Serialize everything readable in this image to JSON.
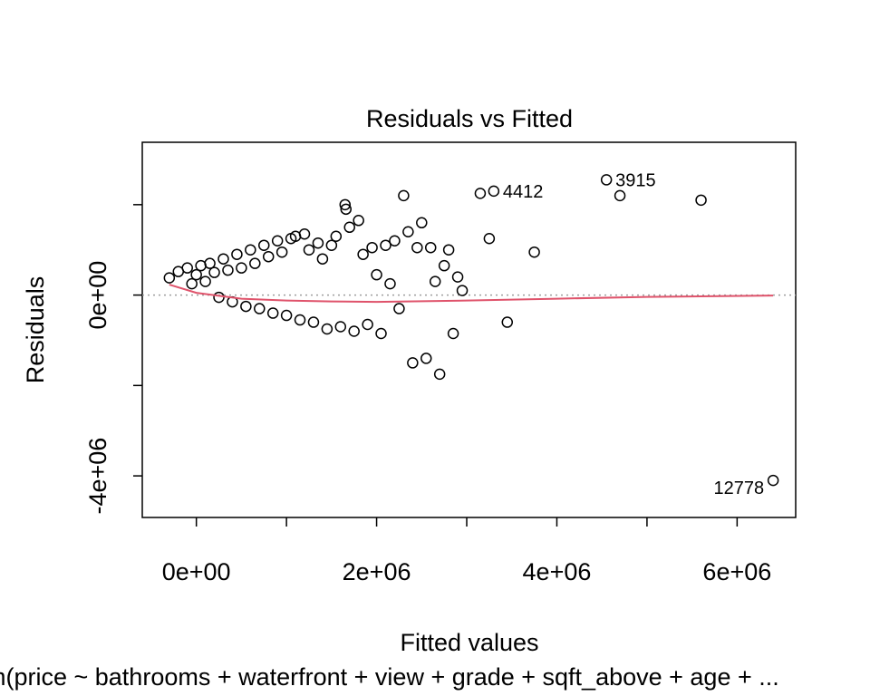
{
  "chart_data": {
    "type": "scatter",
    "title": "Residuals vs Fitted",
    "xlabel": "Fitted values",
    "ylabel": "Residuals",
    "subtitle": "lm(price ~ bathrooms + waterfront + view + grade + sqft_above + age + ...",
    "xlim": [
      -600000,
      6650000
    ],
    "ylim": [
      -4920000,
      3380000
    ],
    "x_ticks": [
      0,
      1000000,
      2000000,
      3000000,
      4000000,
      5000000,
      6000000
    ],
    "x_tick_labels": [
      {
        "value": 0,
        "label": "0e+00"
      },
      {
        "value": 2000000,
        "label": "2e+06"
      },
      {
        "value": 4000000,
        "label": "4e+06"
      },
      {
        "value": 6000000,
        "label": "6e+06"
      }
    ],
    "y_ticks": [
      -4000000,
      -2000000,
      0,
      2000000
    ],
    "y_tick_labels": [
      {
        "value": -4000000,
        "label": "-4e+06"
      },
      {
        "value": 0,
        "label": "0e+00"
      }
    ],
    "zero_line": 0,
    "series": [
      {
        "marker": "open-circle",
        "color": "#000000",
        "points": [
          [
            -300000,
            380000
          ],
          [
            -200000,
            520000
          ],
          [
            -100000,
            600000
          ],
          [
            -50000,
            250000
          ],
          [
            0,
            450000
          ],
          [
            50000,
            650000
          ],
          [
            100000,
            300000
          ],
          [
            150000,
            700000
          ],
          [
            200000,
            500000
          ],
          [
            250000,
            -50000
          ],
          [
            300000,
            800000
          ],
          [
            350000,
            550000
          ],
          [
            400000,
            -150000
          ],
          [
            450000,
            900000
          ],
          [
            500000,
            600000
          ],
          [
            550000,
            -250000
          ],
          [
            600000,
            1000000
          ],
          [
            650000,
            700000
          ],
          [
            700000,
            -300000
          ],
          [
            750000,
            1100000
          ],
          [
            800000,
            850000
          ],
          [
            850000,
            -400000
          ],
          [
            900000,
            1200000
          ],
          [
            950000,
            950000
          ],
          [
            1000000,
            -450000
          ],
          [
            1050000,
            1250000
          ],
          [
            1100000,
            1300000
          ],
          [
            1150000,
            -550000
          ],
          [
            1200000,
            1350000
          ],
          [
            1250000,
            1000000
          ],
          [
            1300000,
            -600000
          ],
          [
            1350000,
            1150000
          ],
          [
            1400000,
            800000
          ],
          [
            1450000,
            -750000
          ],
          [
            1500000,
            1100000
          ],
          [
            1550000,
            1300000
          ],
          [
            1600000,
            -700000
          ],
          [
            1650000,
            2000000
          ],
          [
            1660000,
            1900000
          ],
          [
            1700000,
            1500000
          ],
          [
            1750000,
            -800000
          ],
          [
            1800000,
            1650000
          ],
          [
            1850000,
            900000
          ],
          [
            1900000,
            -650000
          ],
          [
            1950000,
            1050000
          ],
          [
            2000000,
            450000
          ],
          [
            2050000,
            -850000
          ],
          [
            2100000,
            1100000
          ],
          [
            2150000,
            250000
          ],
          [
            2200000,
            1200000
          ],
          [
            2250000,
            -300000
          ],
          [
            2300000,
            2200000
          ],
          [
            2350000,
            1400000
          ],
          [
            2400000,
            -1500000
          ],
          [
            2450000,
            1050000
          ],
          [
            2500000,
            1600000
          ],
          [
            2550000,
            -1400000
          ],
          [
            2600000,
            1050000
          ],
          [
            2650000,
            300000
          ],
          [
            2700000,
            -1750000
          ],
          [
            2750000,
            650000
          ],
          [
            2800000,
            1000000
          ],
          [
            2850000,
            -850000
          ],
          [
            2900000,
            400000
          ],
          [
            2950000,
            100000
          ],
          [
            3150000,
            2250000
          ],
          [
            3250000,
            1250000
          ],
          [
            3300000,
            2300000
          ],
          [
            3450000,
            -600000
          ],
          [
            3750000,
            950000
          ],
          [
            4550000,
            2550000
          ],
          [
            4700000,
            2200000
          ],
          [
            5600000,
            2100000
          ],
          [
            6400000,
            -4100000
          ]
        ]
      }
    ],
    "labeled_points": [
      {
        "x": 3300000,
        "y": 2300000,
        "label": "4412"
      },
      {
        "x": 4550000,
        "y": 2550000,
        "label": "3915"
      },
      {
        "x": 6400000,
        "y": -4100000,
        "label": "12778"
      }
    ],
    "smooth_line": {
      "color": "#df536b",
      "x": [
        -300000,
        0,
        500000,
        1000000,
        1500000,
        2000000,
        3000000,
        4000000,
        5000000,
        6400000
      ],
      "y": [
        230000,
        50000,
        -80000,
        -120000,
        -140000,
        -150000,
        -120000,
        -80000,
        -40000,
        -10000
      ]
    },
    "grid": false,
    "legend": "none"
  }
}
